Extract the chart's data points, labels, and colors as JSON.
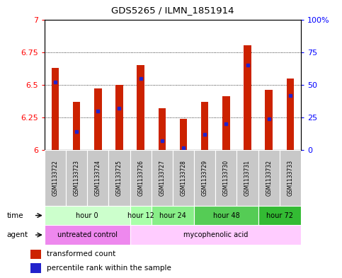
{
  "title": "GDS5265 / ILMN_1851914",
  "samples": [
    "GSM1133722",
    "GSM1133723",
    "GSM1133724",
    "GSM1133725",
    "GSM1133726",
    "GSM1133727",
    "GSM1133728",
    "GSM1133729",
    "GSM1133730",
    "GSM1133731",
    "GSM1133732",
    "GSM1133733"
  ],
  "bar_values": [
    6.63,
    6.37,
    6.47,
    6.5,
    6.65,
    6.32,
    6.24,
    6.37,
    6.41,
    6.8,
    6.46,
    6.55
  ],
  "percentile_values": [
    52,
    14,
    30,
    32,
    55,
    7,
    2,
    12,
    20,
    65,
    24,
    42
  ],
  "ylim": [
    6.0,
    7.0
  ],
  "yticks": [
    6.0,
    6.25,
    6.5,
    6.75,
    7.0
  ],
  "ytick_labels": [
    "6",
    "6.25",
    "6.5",
    "6.75",
    "7"
  ],
  "right_yticks_pct": [
    0,
    25,
    50,
    75,
    100
  ],
  "right_ytick_labels": [
    "0",
    "25",
    "50",
    "75",
    "100%"
  ],
  "bar_color": "#cc2200",
  "percentile_color": "#2222cc",
  "bg_color": "#ffffff",
  "plot_bg": "#ffffff",
  "label_bg": "#c8c8c8",
  "time_groups": [
    {
      "label": "hour 0",
      "start": 0,
      "end": 3,
      "color": "#ccffcc"
    },
    {
      "label": "hour 12",
      "start": 4,
      "end": 4,
      "color": "#aaffaa"
    },
    {
      "label": "hour 24",
      "start": 5,
      "end": 6,
      "color": "#88ee88"
    },
    {
      "label": "hour 48",
      "start": 7,
      "end": 9,
      "color": "#55cc55"
    },
    {
      "label": "hour 72",
      "start": 10,
      "end": 11,
      "color": "#33bb33"
    }
  ],
  "agent_groups": [
    {
      "label": "untreated control",
      "start": 0,
      "end": 3,
      "color": "#ee88ee"
    },
    {
      "label": "mycophenolic acid",
      "start": 4,
      "end": 11,
      "color": "#ffccff"
    }
  ]
}
